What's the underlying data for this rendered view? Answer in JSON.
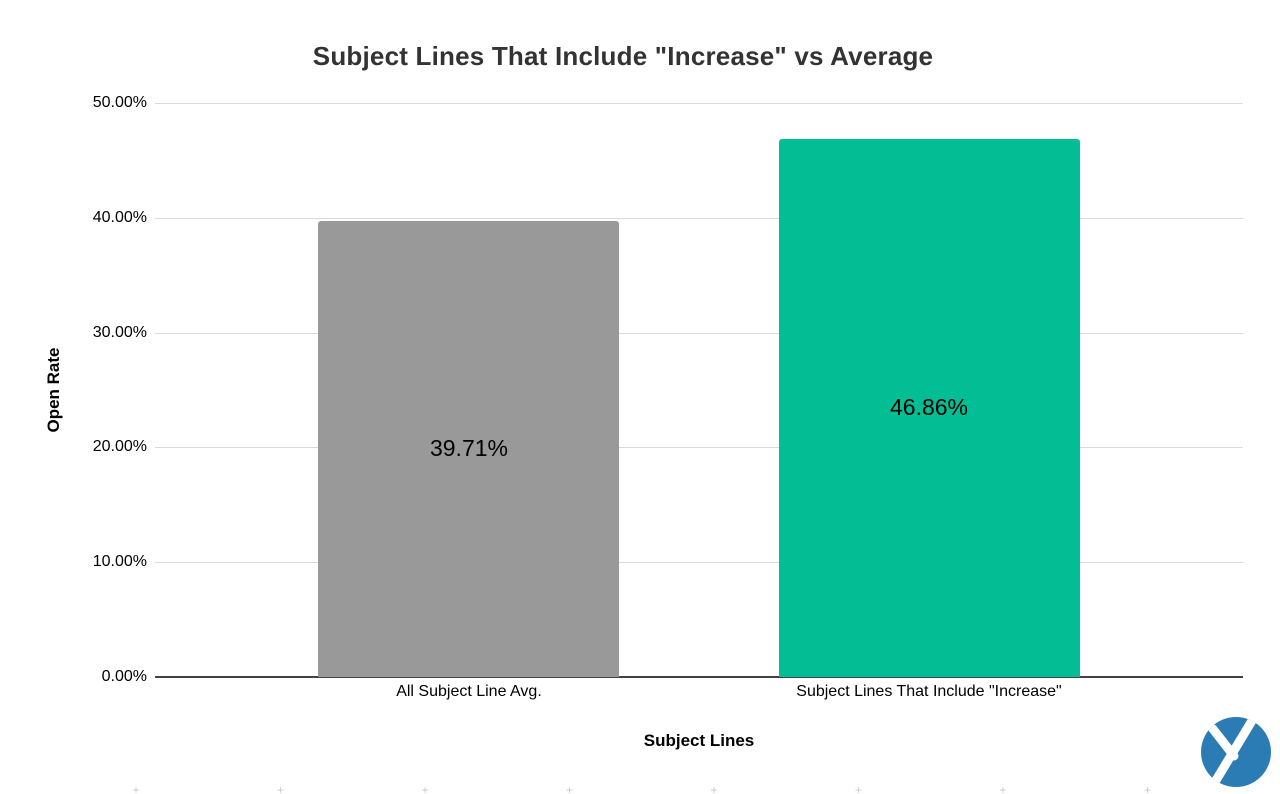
{
  "page": {
    "background": "#ffffff"
  },
  "chart_data": {
    "type": "bar",
    "title": "Subject Lines That Include \"Increase\" vs Average",
    "xlabel": "Subject Lines",
    "ylabel": "Open Rate",
    "categories": [
      "All Subject Line Avg.",
      "Subject Lines That Include \"Increase\""
    ],
    "values": [
      39.71,
      46.86
    ],
    "value_labels": [
      "39.71%",
      "46.86%"
    ],
    "bar_colors": [
      "#999999",
      "#03be95"
    ],
    "ylim": [
      0,
      50
    ],
    "yticks": [
      0,
      10,
      20,
      30,
      40,
      50
    ],
    "ytick_labels": [
      "0.00%",
      "10.00%",
      "20.00%",
      "30.00%",
      "40.00%",
      "50.00%"
    ],
    "grid": true,
    "legend": "none",
    "colors": {
      "gridline": "#d9d9d9",
      "axis_line": "#424242",
      "title": "#333333",
      "label": "#000000"
    }
  },
  "logo": {
    "icon": "circle-y-logo",
    "color": "#2b7cb5"
  },
  "footer": {
    "mark_glyph": "+",
    "mark_count": 8
  }
}
